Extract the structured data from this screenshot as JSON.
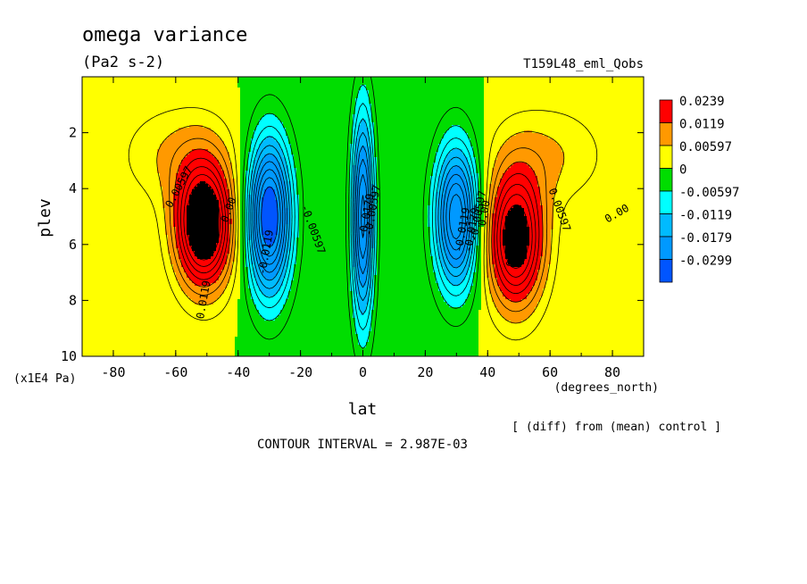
{
  "chart_data": {
    "type": "heatmap",
    "title": "omega variance",
    "subtitle": "(Pa2 s-2)",
    "run_label": "T159L48_eml_Qobs",
    "xlabel": "lat",
    "x_units": "(degrees_north)",
    "ylabel": "plev",
    "y_units": "(x1E4 Pa)",
    "xlim": [
      -90,
      90
    ],
    "ylim": [
      10,
      0
    ],
    "x_ticks": [
      "-80",
      "-60",
      "-40",
      "-20",
      "0",
      "20",
      "40",
      "60",
      "80"
    ],
    "x_tick_values": [
      -80,
      -60,
      -40,
      -20,
      0,
      20,
      40,
      60,
      80
    ],
    "y_ticks": [
      "2",
      "4",
      "6",
      "8",
      "10"
    ],
    "y_tick_values": [
      2,
      4,
      6,
      8,
      10
    ],
    "contour_interval_text": "CONTOUR INTERVAL = 2.987E-03",
    "comparison_note": "[ (diff) from (mean) control ]",
    "legend": {
      "placement": "right",
      "labels": [
        "0.0239",
        "0.0119",
        "0.00597",
        "0",
        "-0.00597",
        "-0.0119",
        "-0.0179",
        "-0.0299"
      ],
      "colors": [
        "#ff0000",
        "#ff9900",
        "#ffff00",
        "#00dd00",
        "#00ffff",
        "#00bbff",
        "#0099ff",
        "#0055ff"
      ]
    },
    "levels": [
      -0.0299,
      -0.0179,
      -0.0119,
      -0.00597,
      0,
      0.00597,
      0.0119,
      0.0239
    ],
    "features": [
      {
        "name": "southern positive maximum",
        "lat": -51,
        "plev": 5.3,
        "value_max": 0.03
      },
      {
        "name": "southern negative minimum",
        "lat": -30,
        "plev": 5.0,
        "value_min": -0.032
      },
      {
        "name": "equatorial negative minimum",
        "lat": 0,
        "plev": 5.0,
        "value_min": -0.026
      },
      {
        "name": "northern negative minimum",
        "lat": 30,
        "plev": 5.0,
        "value_min": -0.026
      },
      {
        "name": "northern positive maximum",
        "lat": 50,
        "plev": 5.8,
        "value_max": 0.028
      }
    ],
    "contour_labels": [
      "0.00597",
      "0.0119",
      "0.00",
      "-0.0119",
      "-0.00597",
      "-0.0179",
      "-0.00597",
      "-0.0119",
      "-0.0179",
      "-0.00597",
      "0.00",
      "0.0119",
      "0.00597",
      "0.00"
    ]
  }
}
